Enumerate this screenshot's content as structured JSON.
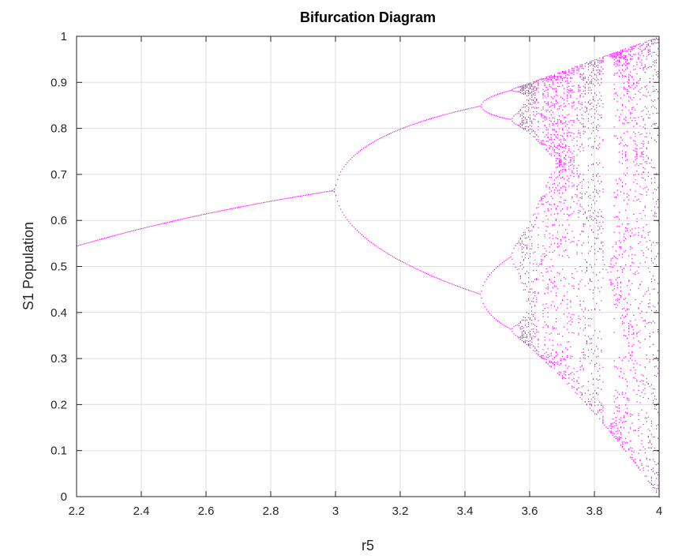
{
  "chart_data": {
    "type": "scatter",
    "title": "Bifurcation Diagram",
    "xlabel": "r5",
    "ylabel": "S1 Population",
    "xlim": [
      2.2,
      4.0
    ],
    "ylim": [
      0,
      1
    ],
    "x_ticks": [
      "2.2",
      "2.4",
      "2.6",
      "2.8",
      "3",
      "3.2",
      "3.4",
      "3.6",
      "3.8",
      "4"
    ],
    "y_ticks": [
      "0",
      "0.1",
      "0.2",
      "0.3",
      "0.4",
      "0.5",
      "0.6",
      "0.7",
      "0.8",
      "0.9",
      "1"
    ],
    "grid": true,
    "marker_color": "#ff00ff",
    "model": "logistic map x(n+1) = r5 * x(n) * (1 - x(n))",
    "r_step": 0.005,
    "transient_iterations": 400,
    "plotted_iterations_per_r": 40
  }
}
